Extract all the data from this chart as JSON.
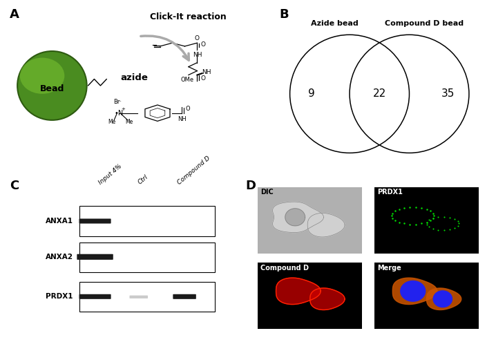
{
  "panel_labels": [
    "A",
    "B",
    "C",
    "D"
  ],
  "panel_A": {
    "bead_color": "#4a8c20",
    "bead_highlight_color": "#7ec832",
    "bead_edge_color": "#2d5a10",
    "bead_label": "Bead",
    "azide_label": "azide",
    "click_it_label": "Click-It reaction",
    "background": "#ffffff"
  },
  "panel_B": {
    "circle1_label": "Azide bead",
    "circle2_label": "Compound D bead",
    "left_number": "9",
    "middle_number": "22",
    "right_number": "35"
  },
  "panel_C": {
    "lane_labels": [
      "Input 4%",
      "Ctrl",
      "Compound D"
    ],
    "row_labels": [
      "ANXA1",
      "ANXA2",
      "PRDX1"
    ],
    "background": "#ffffff"
  },
  "panel_D": {
    "subplot_labels": [
      "DIC",
      "PRDX1",
      "Compound D",
      "Merge"
    ],
    "background": "#000000"
  },
  "figure_bg": "#ffffff"
}
